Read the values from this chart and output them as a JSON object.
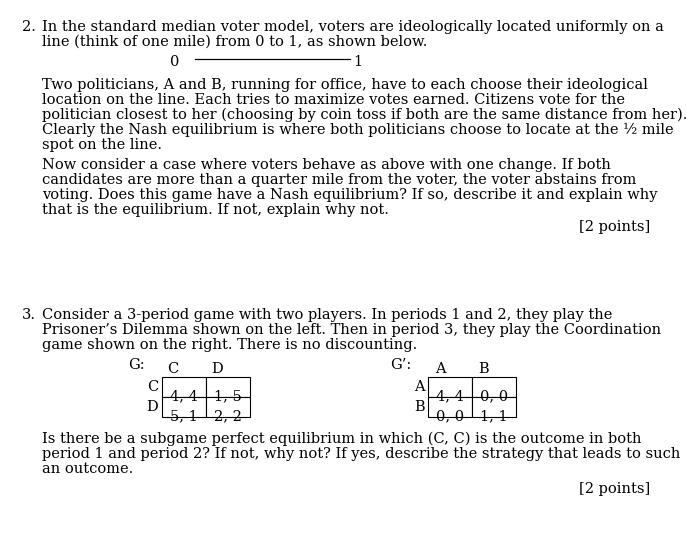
{
  "background_color": "#ffffff",
  "q2_number": "2.",
  "q2_line1": "In the standard median voter model, voters are ideologically located uniformly on a",
  "q2_line2": "line (think of one mile) from 0 to 1, as shown below.",
  "line_label_0": "0",
  "line_label_1": "1",
  "q2_para1_line1": "Two politicians, A and B, running for office, have to each choose their ideological",
  "q2_para1_line2": "location on the line. Each tries to maximize votes earned. Citizens vote for the",
  "q2_para1_line3": "politician closest to her (choosing by coin toss if both are the same distance from her).",
  "q2_para1_line4": "Clearly the Nash equilibrium is where both politicians choose to locate at the ½ mile",
  "q2_para1_line5": "spot on the line.",
  "q2_para2_line1": "Now consider a case where voters behave as above with one change. If both",
  "q2_para2_line2": "candidates are more than a quarter mile from the voter, the voter abstains from",
  "q2_para2_line3": "voting. Does this game have a Nash equilibrium? If so, describe it and explain why",
  "q2_para2_line4": "that is the equilibrium. If not, explain why not.",
  "q2_points": "[2 points]",
  "q3_number": "3.",
  "q3_line1": "Consider a 3-period game with two players. In periods 1 and 2, they play the",
  "q3_line2": "Prisoner’s Dilemma shown on the left. Then in period 3, they play the Coordination",
  "q3_line3": "game shown on the right. There is no discounting.",
  "g_label": "G:",
  "g_col1": "C",
  "g_col2": "D",
  "g_row1": "C",
  "g_row2": "D",
  "g_r1c1": "4, 4",
  "g_r1c2": "1, 5",
  "g_r2c1": "5, 1",
  "g_r2c2": "2, 2",
  "gprime_label": "G’:",
  "gp_col1": "A",
  "gp_col2": "B",
  "gp_row1": "A",
  "gp_row2": "B",
  "gp_r1c1": "4, 4",
  "gp_r1c2": "0, 0",
  "gp_r2c1": "0, 0",
  "gp_r2c2": "1, 1",
  "q3_para1_line1": "Is there be a subgame perfect equilibrium in which (C, C) is the outcome in both",
  "q3_para1_line2": "period 1 and period 2? If not, why not? If yes, describe the strategy that leads to such",
  "q3_para1_line3": "an outcome.",
  "q3_points": "[2 points]",
  "font_size_main": 10.5,
  "font_family": "DejaVu Serif"
}
